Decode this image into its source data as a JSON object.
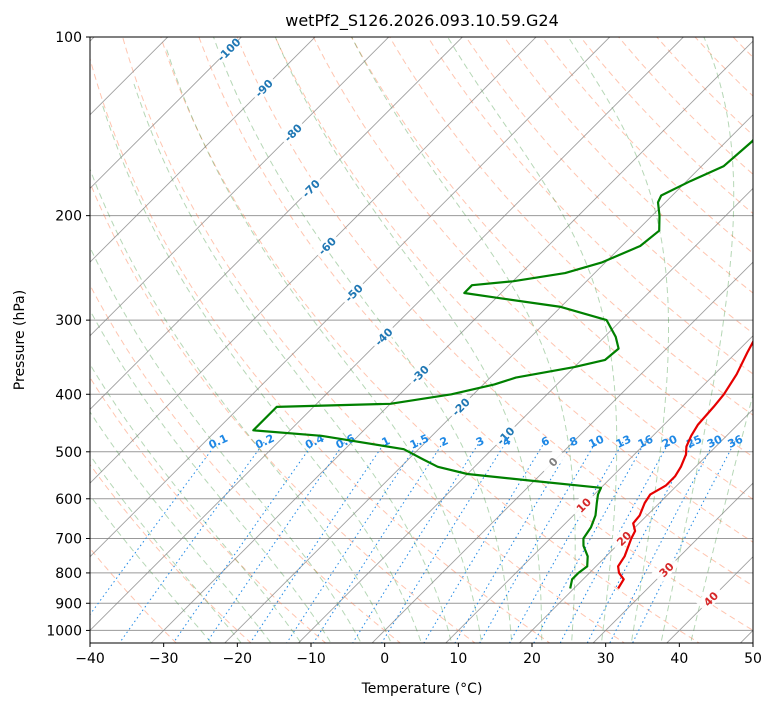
{
  "chart_data": {
    "type": "line",
    "diagram": "skew-T log-P",
    "title": "wetPf2_S126.2026.093.10.59.G24",
    "xlabel": "Temperature (°C)",
    "ylabel": "Pressure (hPa)",
    "xlim": [
      -40,
      50
    ],
    "ylim_hpa": [
      1050,
      100
    ],
    "x_ticks": [
      -40,
      -30,
      -20,
      -10,
      0,
      10,
      20,
      30,
      40,
      50
    ],
    "y_ticks": [
      1000,
      900,
      800,
      700,
      600,
      500,
      400,
      300,
      200,
      100
    ],
    "x_tick_labels": [
      "−40",
      "−30",
      "−20",
      "−10",
      "0",
      "10",
      "20",
      "30",
      "40",
      "50"
    ],
    "y_tick_labels": [
      "1000",
      "900",
      "800",
      "700",
      "600",
      "500",
      "400",
      "300",
      "200",
      "100"
    ],
    "grid": true,
    "colors": {
      "temperature": "#e60000",
      "dewpoint": "#008000",
      "isotherm": "#808080",
      "dry_adiabat": "#ff7f50",
      "moist_adiabat": "#2e8b2e",
      "mixing_ratio": "#1e88e5",
      "isotherm_label_cold": "#1f77b4",
      "isotherm_label_warm": "#d62728",
      "isotherm_label_zero": "#808080"
    },
    "series": [
      {
        "name": "Temperature",
        "points": [
          {
            "p": 850,
            "t": 26.0
          },
          {
            "p": 820,
            "t": 25.5
          },
          {
            "p": 800,
            "t": 24.0
          },
          {
            "p": 780,
            "t": 23.0
          },
          {
            "p": 750,
            "t": 22.5
          },
          {
            "p": 700,
            "t": 21.0
          },
          {
            "p": 680,
            "t": 20.5
          },
          {
            "p": 660,
            "t": 19.2
          },
          {
            "p": 640,
            "t": 19.0
          },
          {
            "p": 610,
            "t": 18.0
          },
          {
            "p": 590,
            "t": 17.6
          },
          {
            "p": 570,
            "t": 18.5
          },
          {
            "p": 550,
            "t": 18.5
          },
          {
            "p": 530,
            "t": 18.0
          },
          {
            "p": 505,
            "t": 17.0
          },
          {
            "p": 490,
            "t": 16.0
          },
          {
            "p": 470,
            "t": 15.2
          },
          {
            "p": 450,
            "t": 14.6
          },
          {
            "p": 420,
            "t": 14.3
          },
          {
            "p": 400,
            "t": 14.0
          },
          {
            "p": 370,
            "t": 13.0
          },
          {
            "p": 340,
            "t": 11.5
          },
          {
            "p": 310,
            "t": 10.0
          },
          {
            "p": 290,
            "t": 9.3
          },
          {
            "p": 270,
            "t": 9.0
          },
          {
            "p": 250,
            "t": 8.5
          },
          {
            "p": 230,
            "t": 7.0
          },
          {
            "p": 215,
            "t": 5.5
          },
          {
            "p": 200,
            "t": 5.5
          },
          {
            "p": 180,
            "t": 5.0
          },
          {
            "p": 165,
            "t": 3.5
          },
          {
            "p": 150,
            "t": 1.5
          },
          {
            "p": 140,
            "t": 1.0
          },
          {
            "p": 130,
            "t": 1.5
          },
          {
            "p": 120,
            "t": 3.0
          },
          {
            "p": 110,
            "t": 6.0
          },
          {
            "p": 100,
            "t": 9.5
          }
        ]
      },
      {
        "name": "Dewpoint",
        "points": [
          {
            "p": 850,
            "t": 19.5
          },
          {
            "p": 820,
            "t": 18.5
          },
          {
            "p": 800,
            "t": 18.5
          },
          {
            "p": 780,
            "t": 18.8
          },
          {
            "p": 750,
            "t": 17.5
          },
          {
            "p": 720,
            "t": 15.5
          },
          {
            "p": 700,
            "t": 14.5
          },
          {
            "p": 670,
            "t": 14.0
          },
          {
            "p": 640,
            "t": 13.0
          },
          {
            "p": 610,
            "t": 11.5
          },
          {
            "p": 590,
            "t": 10.5
          },
          {
            "p": 575,
            "t": 10.0
          },
          {
            "p": 560,
            "t": 0.0
          },
          {
            "p": 545,
            "t": -10.0
          },
          {
            "p": 530,
            "t": -15.0
          },
          {
            "p": 515,
            "t": -18.0
          },
          {
            "p": 495,
            "t": -22.0
          },
          {
            "p": 470,
            "t": -35.0
          },
          {
            "p": 460,
            "t": -45.0
          },
          {
            "p": 420,
            "t": -45.0
          },
          {
            "p": 415,
            "t": -30.0
          },
          {
            "p": 400,
            "t": -23.0
          },
          {
            "p": 385,
            "t": -18.5
          },
          {
            "p": 375,
            "t": -16.5
          },
          {
            "p": 360,
            "t": -10.0
          },
          {
            "p": 350,
            "t": -6.8
          },
          {
            "p": 335,
            "t": -6.5
          },
          {
            "p": 320,
            "t": -8.5
          },
          {
            "p": 300,
            "t": -12.0
          },
          {
            "p": 285,
            "t": -20.0
          },
          {
            "p": 275,
            "t": -30.0
          },
          {
            "p": 270,
            "t": -35.0
          },
          {
            "p": 262,
            "t": -35.0
          },
          {
            "p": 258,
            "t": -30.0
          },
          {
            "p": 250,
            "t": -24.0
          },
          {
            "p": 240,
            "t": -20.5
          },
          {
            "p": 225,
            "t": -17.5
          },
          {
            "p": 212,
            "t": -17.0
          },
          {
            "p": 200,
            "t": -19.0
          },
          {
            "p": 190,
            "t": -21.0
          },
          {
            "p": 185,
            "t": -21.5
          },
          {
            "p": 175,
            "t": -19.5
          },
          {
            "p": 165,
            "t": -17.0
          },
          {
            "p": 150,
            "t": -16.5
          },
          {
            "p": 140,
            "t": -17.0
          },
          {
            "p": 130,
            "t": -18.5
          },
          {
            "p": 120,
            "t": -18.5
          },
          {
            "p": 112,
            "t": -16.0
          },
          {
            "p": 105,
            "t": -13.0
          },
          {
            "p": 100,
            "t": -11.0
          }
        ]
      }
    ],
    "isotherm_labels": [
      "-100",
      "-90",
      "-80",
      "-70",
      "-60",
      "-50",
      "-40",
      "-30",
      "-20",
      "-10",
      "0",
      "10",
      "20",
      "30",
      "40"
    ],
    "isotherm_values": [
      -100,
      -90,
      -80,
      -70,
      -60,
      -50,
      -40,
      -30,
      -20,
      -10,
      0,
      10,
      20,
      30,
      40
    ],
    "mixing_ratio_labels": [
      "0.1",
      "0.2",
      "0.4",
      "0.6",
      "1",
      "1.5",
      "2",
      "3",
      "4",
      "6",
      "8",
      "10",
      "13",
      "16",
      "20",
      "25",
      "30",
      "36"
    ],
    "mixing_ratio_values": [
      0.1,
      0.2,
      0.4,
      0.6,
      1,
      1.5,
      2,
      3,
      4,
      6,
      8,
      10,
      13,
      16,
      20,
      25,
      30,
      36
    ],
    "mixing_ratio_label_pressure_hpa": 480
  }
}
